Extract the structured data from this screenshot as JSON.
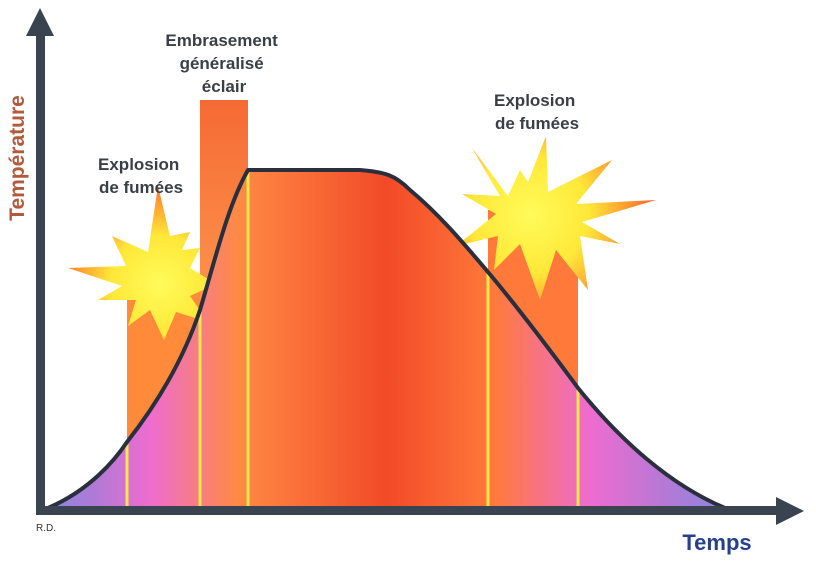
{
  "labels": {
    "flashover": [
      "Embrasement",
      "généralisé",
      "éclair"
    ],
    "smoke_explosion_left": [
      "Explosion",
      "de fumées"
    ],
    "smoke_explosion_right": [
      "Explosion",
      "de fumées"
    ]
  },
  "axes": {
    "y_label": "Température",
    "x_label": "Temps",
    "origin_label": "R.D."
  },
  "colors": {
    "axis": "#3a4450",
    "curve": "#2a2f3e",
    "phase_line": "#f5e84a",
    "fill_cool": "#8a86e0",
    "fill_pink": "#ee6cd0",
    "fill_orange": "#ff7a3a",
    "fill_red": "#f24a28",
    "burst_yellow": "#fff23a",
    "burst_orange": "#ff6a2a"
  },
  "icons": [
    "explosion-burst-icon",
    "explosion-burst-icon"
  ]
}
